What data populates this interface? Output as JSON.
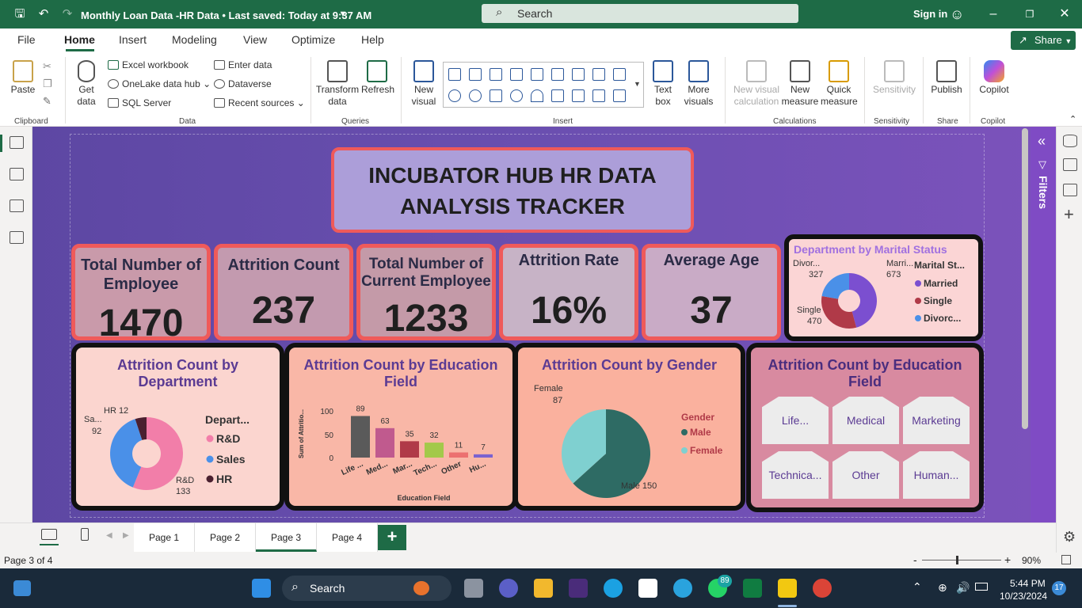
{
  "titlebar": {
    "doc_title": "Monthly Loan Data -HR Data • Last saved: Today at 9:37 AM",
    "search_placeholder": "Search",
    "sign_in": "Sign in"
  },
  "menu": {
    "tabs": [
      "File",
      "Home",
      "Insert",
      "Modeling",
      "View",
      "Optimize",
      "Help"
    ],
    "active": "Home",
    "share": "Share"
  },
  "ribbon": {
    "clipboard": {
      "paste": "Paste",
      "label": "Clipboard"
    },
    "data": {
      "get_data": "Get data",
      "excel": "Excel workbook",
      "onelake": "OneLake data hub",
      "sql": "SQL Server",
      "enter": "Enter data",
      "dataverse": "Dataverse",
      "recent": "Recent sources",
      "label": "Data"
    },
    "queries": {
      "transform": "Transform data",
      "refresh": "Refresh",
      "label": "Queries"
    },
    "insert": {
      "new_visual": "New visual",
      "text_box": "Text box",
      "more_visuals": "More visuals",
      "label": "Insert"
    },
    "calculations": {
      "new_visual_calc": "New visual calculation",
      "new_measure": "New measure",
      "quick_measure": "Quick measure",
      "label": "Calculations"
    },
    "sensitivity": {
      "button": "Sensitivity",
      "label": "Sensitivity"
    },
    "share": {
      "publish": "Publish",
      "label": "Share"
    },
    "copilot": {
      "button": "Copilot",
      "label": "Copilot"
    }
  },
  "report": {
    "title_line1": "INCUBATOR HUB HR DATA",
    "title_line2": "ANALYSIS TRACKER",
    "kpis": [
      {
        "title": "Total Number of Employee",
        "value": "1470"
      },
      {
        "title": "Attrition Count",
        "value": "237"
      },
      {
        "title": "Total Number of Current Employee",
        "value": "1233"
      },
      {
        "title": "Attrition Rate",
        "value": "16%"
      },
      {
        "title": "Average Age",
        "value": "37"
      }
    ],
    "marital": {
      "title": "Department by Marital Status",
      "legend_title": "Marital St...",
      "legend": [
        "Married",
        "Single",
        "Divorc..."
      ],
      "label_divorced": "Divor...",
      "label_divorced_val": "327",
      "label_married": "Marri...",
      "label_married_val": "673",
      "label_single": "Single",
      "label_single_val": "470"
    },
    "dept": {
      "title": "Attrition Count by Department",
      "legend_title": "Depart...",
      "legend": [
        "R&D",
        "Sales",
        "HR"
      ],
      "label_hr": "HR 12",
      "label_sales": "Sa...",
      "label_sales_val": "92",
      "label_rd": "R&D",
      "label_rd_val": "133"
    },
    "edu_bar": {
      "title": "Attrition Count by Education Field",
      "ylabel": "Sum of Attritio...",
      "xlabel": "Education Field",
      "ticks": [
        "100",
        "50",
        "0"
      ]
    },
    "gender": {
      "title": "Attrition Count by Gender",
      "legend_title": "Gender",
      "legend": [
        "Male",
        "Female"
      ],
      "label_female": "Female",
      "label_female_val": "87",
      "label_male": "Male 150"
    },
    "edu_slicer": {
      "title": "Attrition Count by Education Field",
      "items": [
        "Life...",
        "Medical",
        "Marketing",
        "Technica...",
        "Other",
        "Human..."
      ]
    }
  },
  "chart_data": [
    {
      "type": "pie",
      "title": "Department by Marital Status",
      "categories": [
        "Married",
        "Single",
        "Divorced"
      ],
      "values": [
        673,
        470,
        327
      ]
    },
    {
      "type": "pie",
      "title": "Attrition Count by Department",
      "categories": [
        "R&D",
        "Sales",
        "HR"
      ],
      "values": [
        133,
        92,
        12
      ]
    },
    {
      "type": "bar",
      "title": "Attrition Count by Education Field",
      "xlabel": "Education Field",
      "ylabel": "Sum of Attritio...",
      "categories": [
        "Life ...",
        "Med...",
        "Mar...",
        "Tech...",
        "Other",
        "Hu..."
      ],
      "values": [
        89,
        63,
        35,
        32,
        11,
        7
      ],
      "ylim": [
        0,
        100
      ]
    },
    {
      "type": "pie",
      "title": "Attrition Count by Gender",
      "categories": [
        "Male",
        "Female"
      ],
      "values": [
        150,
        87
      ]
    }
  ],
  "filters_label": "Filters",
  "pages": [
    "Page 1",
    "Page 2",
    "Page 3",
    "Page 4"
  ],
  "active_page": "Page 3",
  "status": {
    "page_info": "Page 3 of 4",
    "zoom": "90%"
  },
  "taskbar": {
    "search": "Search",
    "time": "5:44 PM",
    "date": "10/23/2024",
    "whatsapp_badge": "89",
    "notif_badge": "17"
  },
  "colors": {
    "brand": "#1e6b46",
    "purple": "#7b4fd0",
    "red": "#b03a48",
    "blue": "#4a90e8",
    "pink": "#f27ea9",
    "teal_dark": "#2e6b64",
    "teal_light": "#7fd0d0"
  }
}
